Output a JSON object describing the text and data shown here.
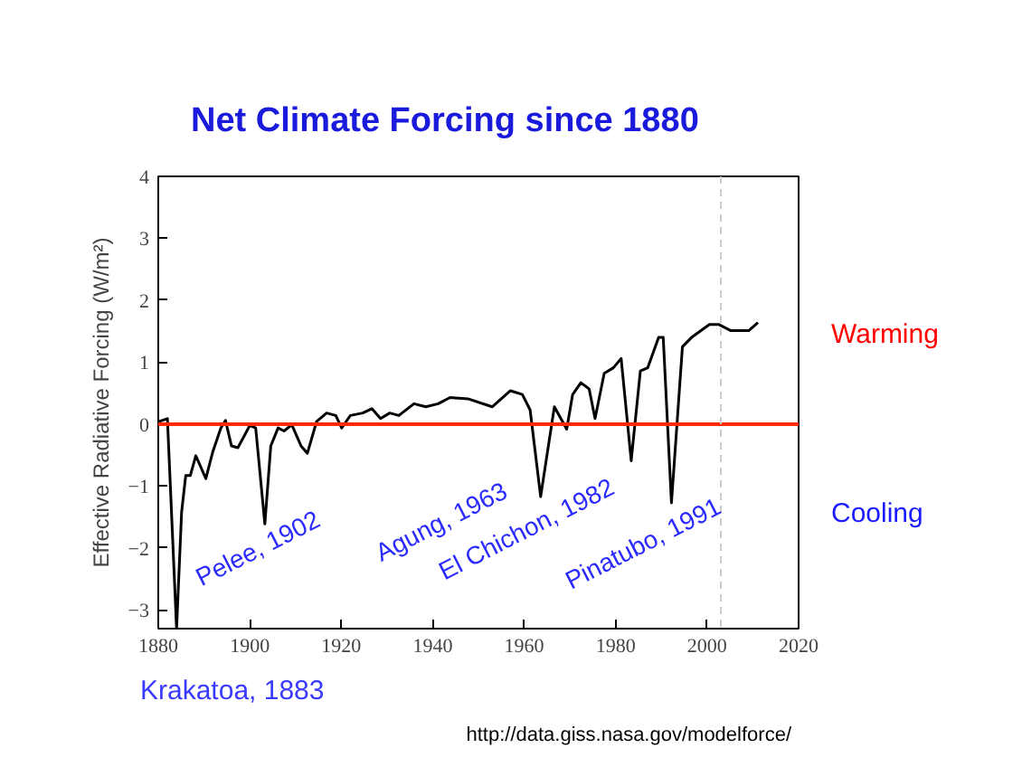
{
  "chart_data": {
    "type": "line",
    "title": "Net Climate Forcing since 1880",
    "ylabel": "Effective Radiative Forcing (W/m²)",
    "x": [
      1880,
      1882,
      1884,
      1885.1,
      1886,
      1887,
      1888.2,
      1889,
      1890.4,
      1891.9,
      1893.7,
      1894.7,
      1896,
      1897.4,
      1899,
      1900,
      1901.3,
      1903.3,
      1904.6,
      1906.2,
      1907.5,
      1909.2,
      1911.2,
      1912.6,
      1914.6,
      1916.8,
      1918.8,
      1920.1,
      1922,
      1924.7,
      1926.7,
      1928.6,
      1930.6,
      1932.6,
      1935.9,
      1938.5,
      1941.2,
      1943.8,
      1947.7,
      1953,
      1957,
      1959.6,
      1961.3,
      1963.6,
      1966.6,
      1969.3,
      1970.6,
      1972.4,
      1974.2,
      1975.5,
      1977.5,
      1979.5,
      1981.2,
      1983.4,
      1985.4,
      1987,
      1989.4,
      1990.4,
      1992.2,
      1994.6,
      1996.6,
      2000.5,
      2002.5,
      2005.2,
      2009.1,
      2011.1
    ],
    "series": [
      {
        "color": "#000000",
        "values": [
          0.04,
          0.09,
          -3.3,
          -1.42,
          -0.83,
          -0.83,
          -0.51,
          -0.64,
          -0.88,
          -0.45,
          -0.06,
          0.06,
          -0.35,
          -0.38,
          -0.16,
          -0.02,
          -0.06,
          -1.61,
          -0.35,
          -0.06,
          -0.11,
          -0.01,
          -0.35,
          -0.47,
          0.04,
          0.18,
          0.14,
          -0.06,
          0.14,
          0.18,
          0.25,
          0.09,
          0.18,
          0.14,
          0.33,
          0.28,
          0.33,
          0.43,
          0.41,
          0.28,
          0.54,
          0.48,
          0.23,
          -1.17,
          0.28,
          -0.08,
          0.48,
          0.67,
          0.57,
          0.09,
          0.82,
          0.91,
          1.06,
          -0.59,
          0.86,
          0.91,
          1.4,
          1.4,
          -1.27,
          1.25,
          1.4,
          1.61,
          1.61,
          1.51,
          1.51,
          1.64
        ]
      }
    ],
    "xlim": [
      1880,
      2020
    ],
    "ylim": [
      -3.3,
      4
    ],
    "xticks": [
      1880,
      1900,
      1920,
      1940,
      1960,
      1980,
      2000,
      2020
    ],
    "yticks": [
      -3,
      -2,
      -1,
      0,
      1,
      2,
      3,
      4
    ],
    "grid": false,
    "marker": "none",
    "line_style": "solid",
    "ref_lines": [
      {
        "axis": "y",
        "value": 0,
        "color": "#ff2a00",
        "line_style": "solid"
      },
      {
        "axis": "x",
        "value": 2003,
        "color": "#cccccc",
        "line_style": "dashed"
      }
    ],
    "annotations": [
      "Krakatoa, 1883",
      "Pelee, 1902",
      "Agung, 1963",
      "El Chichon, 1982",
      "Pinatubo, 1991",
      "Warming",
      "Cooling",
      "http://data.giss.nasa.gov/modelforce/"
    ]
  }
}
